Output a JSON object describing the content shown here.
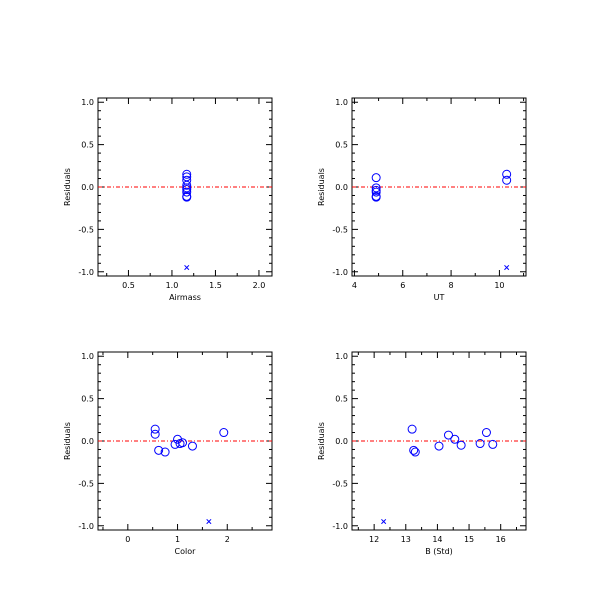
{
  "chart_data": [
    {
      "type": "scatter",
      "xlabel": "Airmass",
      "ylabel": "Residuals",
      "xlim": [
        0.15,
        2.15
      ],
      "ylim": [
        -1.05,
        1.05
      ],
      "xticks": [
        0.5,
        1.0,
        1.5,
        2.0
      ],
      "xtick_labels": [
        "0.5",
        "1.0",
        "1.5",
        "2.0"
      ],
      "yticks": [
        -1.0,
        -0.5,
        0.0,
        0.5,
        1.0
      ],
      "ytick_labels": [
        "-1.0",
        "-0.5",
        "0.0",
        "0.5",
        "1.0"
      ],
      "zero_line": 0,
      "points": [
        {
          "x": 1.17,
          "y": 0.15
        },
        {
          "x": 1.17,
          "y": 0.12
        },
        {
          "x": 1.17,
          "y": 0.08
        },
        {
          "x": 1.17,
          "y": 0.02
        },
        {
          "x": 1.17,
          "y": -0.01
        },
        {
          "x": 1.17,
          "y": -0.03
        },
        {
          "x": 1.17,
          "y": -0.06
        },
        {
          "x": 1.17,
          "y": -0.11
        },
        {
          "x": 1.17,
          "y": -0.12
        }
      ],
      "outliers": [
        {
          "x": 1.17,
          "y": -0.95
        }
      ]
    },
    {
      "type": "scatter",
      "xlabel": "UT",
      "ylabel": "Residuals",
      "xlim": [
        3.9,
        11.1
      ],
      "ylim": [
        -1.05,
        1.05
      ],
      "xticks": [
        4,
        6,
        8,
        10
      ],
      "xtick_labels": [
        "4",
        "6",
        "8",
        "10"
      ],
      "yticks": [
        -1.0,
        -0.5,
        0.0,
        0.5,
        1.0
      ],
      "ytick_labels": [
        "-1.0",
        "-0.5",
        "0.0",
        "0.5",
        "1.0"
      ],
      "zero_line": 0,
      "points": [
        {
          "x": 4.9,
          "y": 0.11
        },
        {
          "x": 4.9,
          "y": -0.01
        },
        {
          "x": 4.9,
          "y": -0.04
        },
        {
          "x": 4.9,
          "y": -0.06
        },
        {
          "x": 4.9,
          "y": -0.11
        },
        {
          "x": 4.9,
          "y": -0.12
        },
        {
          "x": 10.3,
          "y": 0.15
        },
        {
          "x": 10.3,
          "y": 0.08
        }
      ],
      "outliers": [
        {
          "x": 10.3,
          "y": -0.95
        }
      ]
    },
    {
      "type": "scatter",
      "xlabel": "Color",
      "ylabel": "Residuals",
      "xlim": [
        -0.6,
        2.9
      ],
      "ylim": [
        -1.05,
        1.05
      ],
      "xticks": [
        0,
        1,
        2
      ],
      "xtick_labels": [
        "0",
        "1",
        "2"
      ],
      "yticks": [
        -1.0,
        -0.5,
        0.0,
        0.5,
        1.0
      ],
      "ytick_labels": [
        "-1.0",
        "-0.5",
        "0.0",
        "0.5",
        "1.0"
      ],
      "zero_line": 0,
      "points": [
        {
          "x": 0.55,
          "y": 0.14
        },
        {
          "x": 0.55,
          "y": 0.08
        },
        {
          "x": 0.62,
          "y": -0.11
        },
        {
          "x": 0.75,
          "y": -0.13
        },
        {
          "x": 0.95,
          "y": -0.04
        },
        {
          "x": 1.0,
          "y": 0.02
        },
        {
          "x": 1.05,
          "y": -0.03
        },
        {
          "x": 1.1,
          "y": -0.02
        },
        {
          "x": 1.3,
          "y": -0.06
        },
        {
          "x": 1.93,
          "y": 0.1
        }
      ],
      "outliers": [
        {
          "x": 1.63,
          "y": -0.95
        }
      ]
    },
    {
      "type": "scatter",
      "xlabel": "B (Std)",
      "ylabel": "Residuals",
      "xlim": [
        11.3,
        16.8
      ],
      "ylim": [
        -1.05,
        1.05
      ],
      "xticks": [
        12,
        13,
        14,
        15,
        16
      ],
      "xtick_labels": [
        "12",
        "13",
        "14",
        "15",
        "16"
      ],
      "yticks": [
        -1.0,
        -0.5,
        0.0,
        0.5,
        1.0
      ],
      "ytick_labels": [
        "-1.0",
        "-0.5",
        "0.0",
        "0.5",
        "1.0"
      ],
      "zero_line": 0,
      "points": [
        {
          "x": 13.2,
          "y": 0.14
        },
        {
          "x": 13.25,
          "y": -0.11
        },
        {
          "x": 13.3,
          "y": -0.13
        },
        {
          "x": 14.05,
          "y": -0.06
        },
        {
          "x": 14.35,
          "y": 0.07
        },
        {
          "x": 14.55,
          "y": 0.02
        },
        {
          "x": 14.75,
          "y": -0.05
        },
        {
          "x": 15.35,
          "y": -0.03
        },
        {
          "x": 15.55,
          "y": 0.1
        },
        {
          "x": 15.75,
          "y": -0.04
        }
      ],
      "outliers": [
        {
          "x": 12.3,
          "y": -0.95
        }
      ]
    }
  ],
  "colors": {
    "marker": "#0000ff",
    "zero_line": "#ff0000",
    "axes": "#000000"
  }
}
